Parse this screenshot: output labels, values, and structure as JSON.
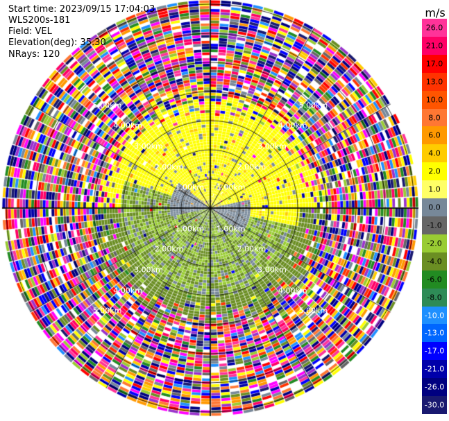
{
  "header": {
    "start_time": "Start time: 2023/09/15 17:04:03",
    "station": "WLS200s-181",
    "field": "Field: VEL",
    "elevation": "Elevation(deg): 35.30",
    "nrays": "NRays: 120"
  },
  "range_rings": [
    {
      "label": "1.00km",
      "km": 1
    },
    {
      "label": "2.00km",
      "km": 2
    },
    {
      "label": "3.00km",
      "km": 3
    },
    {
      "label": "4.00km",
      "km": 4
    },
    {
      "label": "5.00km",
      "km": 5
    }
  ],
  "colorbar": {
    "units": "m/s",
    "ticks": [
      "26.0",
      "21.0",
      "17.0",
      "13.0",
      "10.0",
      "8.0",
      "6.0",
      "4.0",
      "2.0",
      "1.0",
      "0.0",
      "-1.0",
      "-2.0",
      "-4.0",
      "-6.0",
      "-8.0",
      "-10.0",
      "-13.0",
      "-17.0",
      "-21.0",
      "-26.0",
      "-30.0"
    ],
    "colors": [
      "#ff3399",
      "#ff0066",
      "#ff0000",
      "#ff3300",
      "#ff5500",
      "#ff7733",
      "#ff9900",
      "#ffcc00",
      "#ffff00",
      "#ffff66",
      "#778899",
      "#666666",
      "#99cc33",
      "#6b8e23",
      "#228b22",
      "#2e8b57",
      "#1e90ff",
      "#0066ff",
      "#0000ff",
      "#0000aa",
      "#000080",
      "#191970"
    ]
  }
}
